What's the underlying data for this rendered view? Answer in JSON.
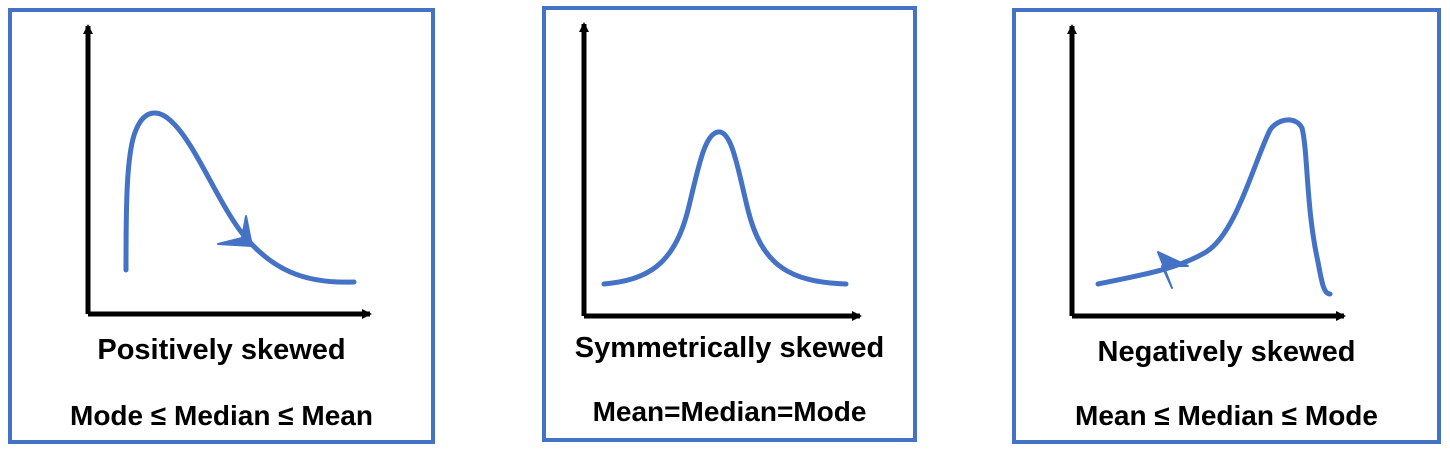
{
  "colors": {
    "border": "#4472c4",
    "curve": "#4472c4",
    "axis": "#000000",
    "text": "#000000"
  },
  "panels": {
    "positive": {
      "title": "Positively skewed",
      "relation": "Mode ≤ Median ≤ Mean"
    },
    "symmetric": {
      "title": "Symmetrically  skewed",
      "relation": "Mean=Median=Mode"
    },
    "negative": {
      "title": "Negatively skewed",
      "relation": "Mean ≤ Median ≤ Mode"
    }
  }
}
